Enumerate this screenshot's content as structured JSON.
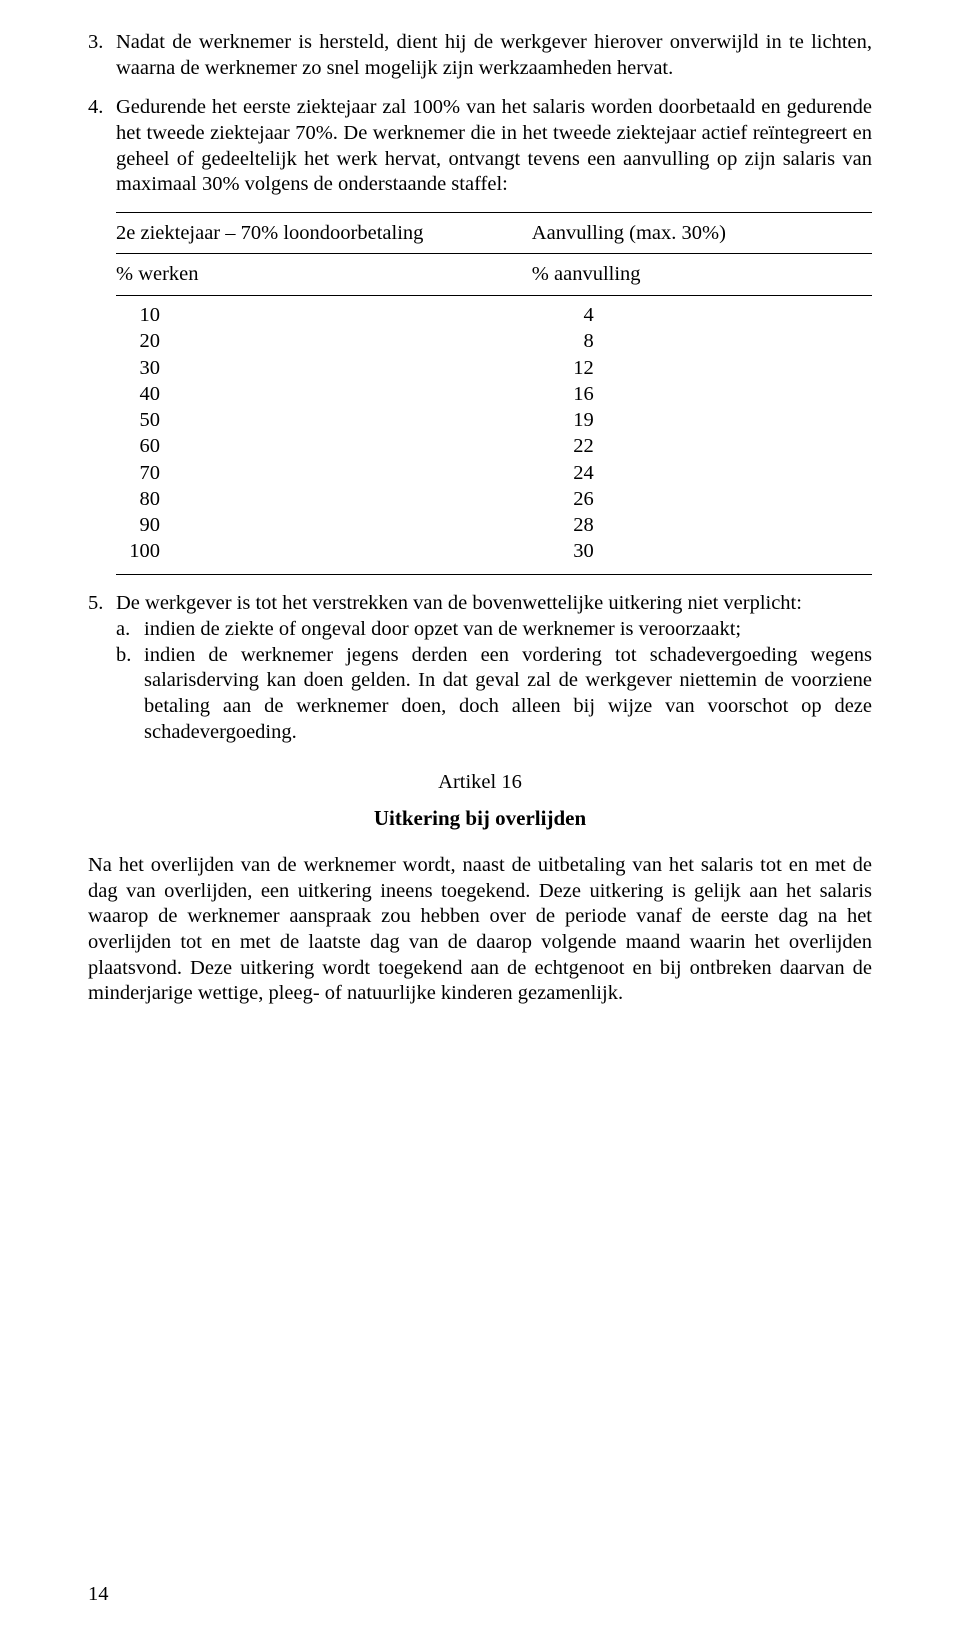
{
  "colors": {
    "background": "#ffffff",
    "text": "#000000",
    "rule": "#000000"
  },
  "typography": {
    "body_fontsize_pt": 12,
    "body_font": "Times New Roman",
    "line_height": 1.25,
    "title_weight": "bold"
  },
  "list3": {
    "num": "3.",
    "text": "Nadat de werknemer is hersteld, dient hij de werkgever hierover onverwijld in te lichten, waarna de werknemer zo snel mogelijk zijn werkzaamheden hervat."
  },
  "list4": {
    "num": "4.",
    "text": "Gedurende het eerste ziektejaar zal 100% van het salaris worden doorbetaald en gedurende het tweede ziektejaar 70%. De werknemer die in het tweede ziektejaar actief reïntegreert en geheel of gedeeltelijk het werk hervat, ontvangt tevens een aanvulling op zijn salaris van maximaal 30% volgens de onderstaande staffel:"
  },
  "table": {
    "header1_left": "2e ziektejaar – 70% loondoorbetaling",
    "header1_right": "Aanvulling (max. 30%)",
    "header2_left": "% werken",
    "header2_right": "% aanvulling",
    "rows": [
      {
        "werken": "10",
        "aanv": "4"
      },
      {
        "werken": "20",
        "aanv": "8"
      },
      {
        "werken": "30",
        "aanv": "12"
      },
      {
        "werken": "40",
        "aanv": "16"
      },
      {
        "werken": "50",
        "aanv": "19"
      },
      {
        "werken": "60",
        "aanv": "22"
      },
      {
        "werken": "70",
        "aanv": "24"
      },
      {
        "werken": "80",
        "aanv": "26"
      },
      {
        "werken": "90",
        "aanv": "28"
      },
      {
        "werken": "100",
        "aanv": "30"
      }
    ]
  },
  "list5": {
    "num": "5.",
    "intro": "De werkgever is tot het verstrekken van de bovenwettelijke uitkering niet verplicht:",
    "a_label": "a.",
    "a_text": "indien de ziekte of ongeval door opzet van de werknemer is veroorzaakt;",
    "b_label": "b.",
    "b_text": "indien de werknemer jegens derden een vordering tot schadevergoeding wegens salarisderving kan doen gelden. In dat geval zal de werkgever niettemin de voorziene betaling aan de werknemer doen, doch alleen bij wijze van voorschot op deze schadevergoeding."
  },
  "article": {
    "num": "Artikel 16",
    "title": "Uitkering bij overlijden",
    "body": "Na het overlijden van de werknemer wordt, naast de uitbetaling van het salaris tot en met de dag van overlijden, een uitkering ineens toegekend. Deze uitkering is gelijk aan het salaris waarop de werknemer aanspraak zou hebben over de periode vanaf de eerste dag na het overlijden tot en met de laatste dag van de daarop volgende maand waarin het overlijden plaatsvond. Deze uitkering wordt toegekend aan de echtgenoot en bij ontbreken daarvan de minderjarige wettige, pleeg- of natuurlijke kinderen gezamenlijk."
  },
  "page_number": "14"
}
